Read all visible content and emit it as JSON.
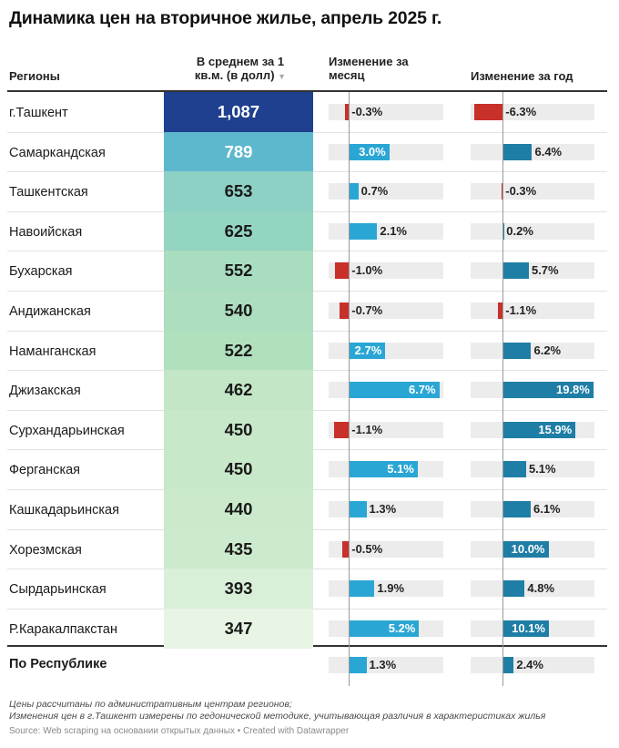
{
  "title": "Динамика цен на вторичное жилье, апрель 2025 г.",
  "headers": {
    "region": "Регионы",
    "avg_line1": "В среднем за 1",
    "avg_line2": "кв.м. (в долл)",
    "sort_icon": "▼",
    "month_line1": "Изменение за",
    "month_line2": "месяц",
    "year": "Изменение за год"
  },
  "colors": {
    "positive_month": "#2aa6d4",
    "positive_year": "#1f7ea6",
    "negative": "#c8302a",
    "track": "#ececec",
    "heat_scale": [
      "#e8f5e4",
      "#b9e3bd",
      "#8fd3c3",
      "#5cb8cd",
      "#2f8fc4",
      "#1f3f8f"
    ]
  },
  "chart_data": {
    "type": "table",
    "columns": [
      "Регионы",
      "В среднем за 1 кв.м. (в долл)",
      "Изменение за месяц",
      "Изменение за год"
    ],
    "rows": [
      {
        "region": "г.Ташкент",
        "avg": 1087,
        "avg_label": "1,087",
        "month": -0.3,
        "month_label": "-0.3%",
        "year": -6.3,
        "year_label": "-6.3%"
      },
      {
        "region": "Самаркандская",
        "avg": 789,
        "avg_label": "789",
        "month": 3.0,
        "month_label": "3.0%",
        "year": 6.4,
        "year_label": "6.4%"
      },
      {
        "region": "Ташкентская",
        "avg": 653,
        "avg_label": "653",
        "month": 0.7,
        "month_label": "0.7%",
        "year": -0.3,
        "year_label": "-0.3%"
      },
      {
        "region": "Навоийская",
        "avg": 625,
        "avg_label": "625",
        "month": 2.1,
        "month_label": "2.1%",
        "year": 0.2,
        "year_label": "0.2%"
      },
      {
        "region": "Бухарская",
        "avg": 552,
        "avg_label": "552",
        "month": -1.0,
        "month_label": "-1.0%",
        "year": 5.7,
        "year_label": "5.7%"
      },
      {
        "region": "Андижанская",
        "avg": 540,
        "avg_label": "540",
        "month": -0.7,
        "month_label": "-0.7%",
        "year": -1.1,
        "year_label": "-1.1%"
      },
      {
        "region": "Наманганская",
        "avg": 522,
        "avg_label": "522",
        "month": 2.7,
        "month_label": "2.7%",
        "year": 6.2,
        "year_label": "6.2%"
      },
      {
        "region": "Джизакская",
        "avg": 462,
        "avg_label": "462",
        "month": 6.7,
        "month_label": "6.7%",
        "year": 19.8,
        "year_label": "19.8%"
      },
      {
        "region": "Сурхандарьинская",
        "avg": 450,
        "avg_label": "450",
        "month": -1.1,
        "month_label": "-1.1%",
        "year": 15.9,
        "year_label": "15.9%"
      },
      {
        "region": "Ферганская",
        "avg": 450,
        "avg_label": "450",
        "month": 5.1,
        "month_label": "5.1%",
        "year": 5.1,
        "year_label": "5.1%"
      },
      {
        "region": "Кашкадарьинская",
        "avg": 440,
        "avg_label": "440",
        "month": 1.3,
        "month_label": "1.3%",
        "year": 6.1,
        "year_label": "6.1%"
      },
      {
        "region": "Хорезмская",
        "avg": 435,
        "avg_label": "435",
        "month": -0.5,
        "month_label": "-0.5%",
        "year": 10.0,
        "year_label": "10.0%"
      },
      {
        "region": "Сырдарьинская",
        "avg": 393,
        "avg_label": "393",
        "month": 1.9,
        "month_label": "1.9%",
        "year": 4.8,
        "year_label": "4.8%"
      },
      {
        "region": "Р.Каракалпакстан",
        "avg": 347,
        "avg_label": "347",
        "month": 5.2,
        "month_label": "5.2%",
        "year": 10.1,
        "year_label": "10.1%"
      }
    ],
    "total": {
      "region": "По Республике",
      "month": 1.3,
      "month_label": "1.3%",
      "year": 2.4,
      "year_label": "2.4%"
    },
    "month_range": [
      -1.5,
      7.0
    ],
    "year_range": [
      -7.0,
      20.0
    ]
  },
  "notes": {
    "line1": "Цены рассчитаны по административным центрам регионов;",
    "line2": "Изменения цен в г.Ташкент измерены по гедонической методике, учитывающая различия в характеристиках жилья",
    "source": "Source: Web scraping на основании открытых данных • Created with Datawrapper"
  }
}
